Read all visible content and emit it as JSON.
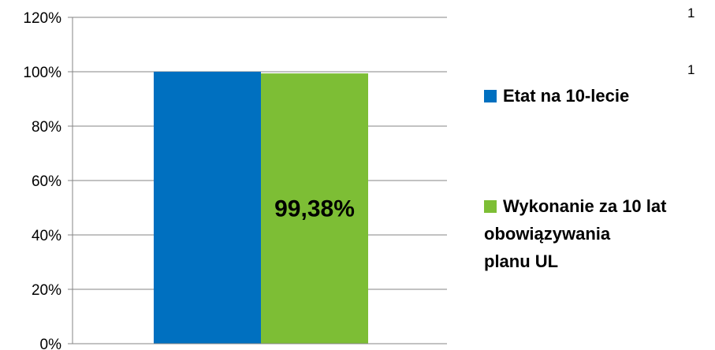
{
  "chart_data": {
    "type": "bar",
    "ylim": [
      0,
      120
    ],
    "yticks": [
      "0%",
      "20%",
      "40%",
      "60%",
      "80%",
      "100%",
      "120%"
    ],
    "grid": true,
    "legend_position": "right",
    "series": [
      {
        "name": "Etat na 10-lecie",
        "values": [
          100
        ],
        "color": "#0070C0",
        "data_label": ""
      },
      {
        "name": "Wykonanie za 10 lat obowiązywania planu UL",
        "values": [
          99.38
        ],
        "color": "#7DBE35",
        "data_label": "99,38%"
      }
    ],
    "legend_lines": [
      [
        "Etat na 10-lecie"
      ],
      [
        "Wykonanie za 10 lat",
        "obowiązywania",
        "planu UL"
      ]
    ],
    "edge_labels": [
      "1",
      "1"
    ]
  }
}
